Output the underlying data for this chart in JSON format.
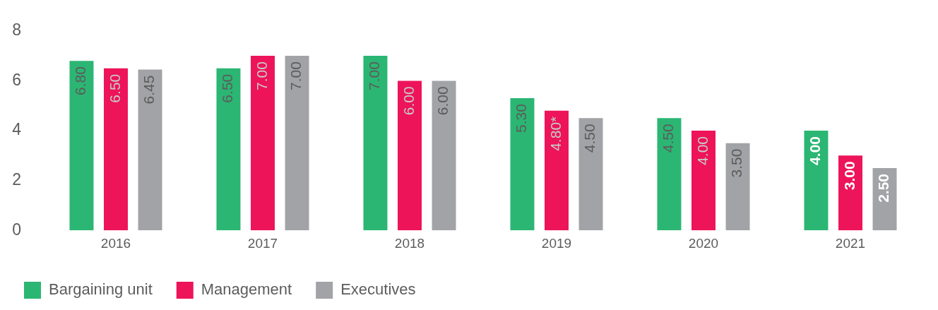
{
  "chart_data": {
    "type": "bar",
    "categories": [
      "2016",
      "2017",
      "2018",
      "2019",
      "2020",
      "2021"
    ],
    "series": [
      {
        "name": "Bargaining unit",
        "color": "#2bb673",
        "values": [
          6.8,
          6.5,
          7.0,
          5.3,
          4.5,
          4.0
        ],
        "value_labels": [
          "6.80",
          "6.50",
          "7.00",
          "5.30",
          "4.50",
          "4.00"
        ]
      },
      {
        "name": "Management",
        "color": "#ed1459",
        "values": [
          6.5,
          7.0,
          6.0,
          4.8,
          4.0,
          3.0
        ],
        "value_labels": [
          "6.50",
          "7.00",
          "6.00",
          "4.80*",
          "4.00",
          "3.00"
        ]
      },
      {
        "name": "Executives",
        "color": "#a2a3a6",
        "values": [
          6.45,
          7.0,
          6.0,
          4.5,
          3.5,
          2.5
        ],
        "value_labels": [
          "6.45",
          "7.00",
          "6.00",
          "4.50",
          "3.50",
          "2.50"
        ]
      }
    ],
    "ylim": [
      0,
      8
    ],
    "yticks": [
      0,
      2,
      4,
      6,
      8
    ],
    "grid": false,
    "legend": "bottom left"
  }
}
